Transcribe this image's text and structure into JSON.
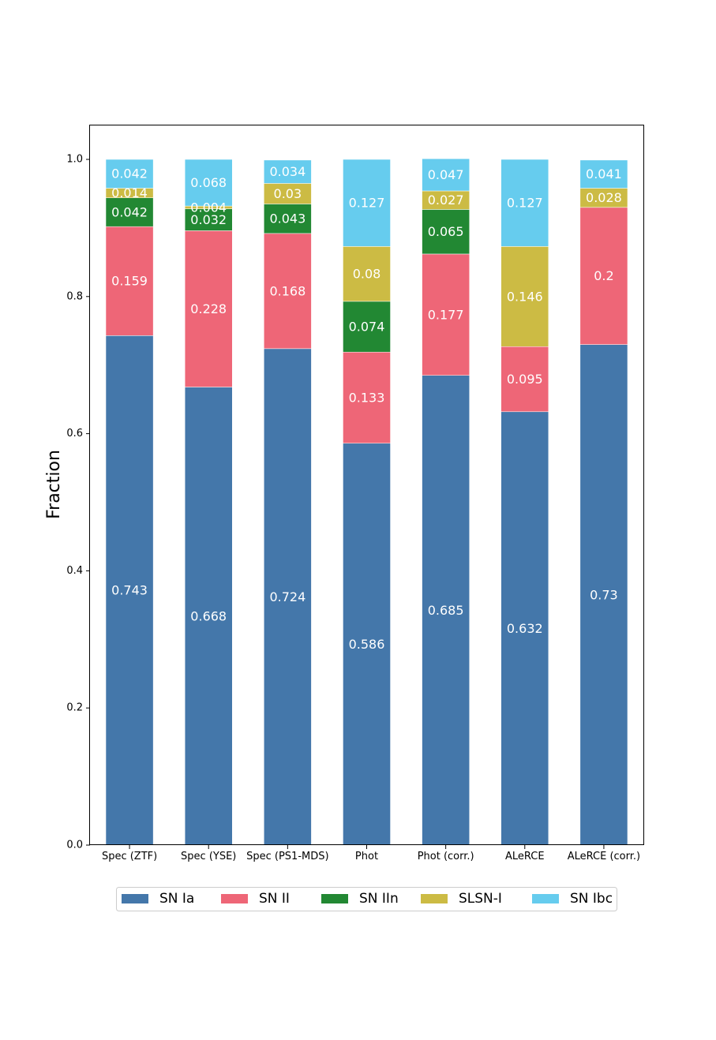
{
  "chart_data": {
    "type": "bar",
    "stacked": true,
    "title": "",
    "xlabel": "",
    "ylabel": "Fraction",
    "ylim": [
      0,
      1.05
    ],
    "yticks": [
      "0.0",
      "0.2",
      "0.4",
      "0.6",
      "0.8",
      "1.0"
    ],
    "categories": [
      "Spec (ZTF)",
      "Spec (YSE)",
      "Spec (PS1-MDS)",
      "Phot",
      "Phot (corr.)",
      "ALeRCE",
      "ALeRCE (corr.)"
    ],
    "series": [
      {
        "name": "SN Ia",
        "color": "#4477aa",
        "values": [
          0.743,
          0.668,
          0.724,
          0.586,
          0.685,
          0.632,
          0.73
        ]
      },
      {
        "name": "SN II",
        "color": "#ee6677",
        "values": [
          0.159,
          0.228,
          0.168,
          0.133,
          0.177,
          0.095,
          0.2
        ]
      },
      {
        "name": "SN IIn",
        "color": "#228833",
        "values": [
          0.042,
          0.032,
          0.043,
          0.074,
          0.065,
          0,
          0
        ]
      },
      {
        "name": "SLSN-I",
        "color": "#ccbb44",
        "values": [
          0.014,
          0.004,
          0.03,
          0.08,
          0.027,
          0.146,
          0.028
        ]
      },
      {
        "name": "SN Ibc",
        "color": "#66ccee",
        "values": [
          0.042,
          0.068,
          0.034,
          0.127,
          0.047,
          0.127,
          0.041
        ]
      }
    ],
    "legend": "bottom-center",
    "grid": false
  }
}
